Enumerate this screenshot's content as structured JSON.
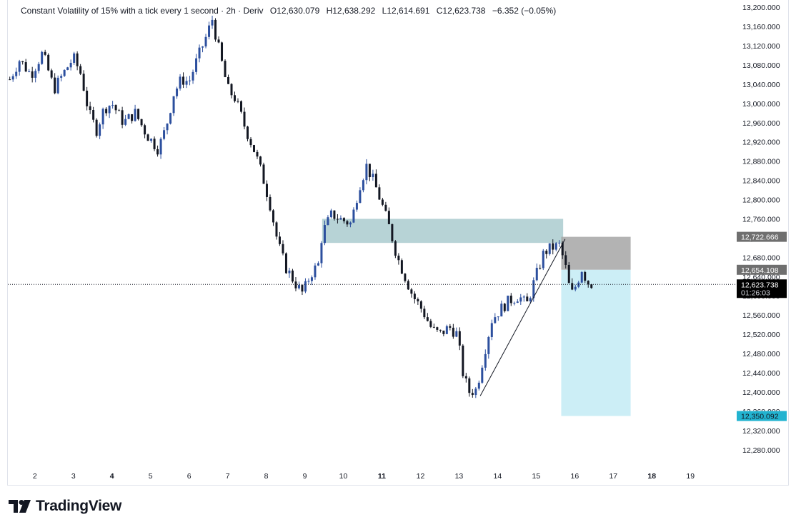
{
  "legend": {
    "symbol": "Constant Volatility of 15% with a tick every 1 second · 2h · Deriv",
    "open": "O12,630.079",
    "high": "H12,638.292",
    "low": "L12,614.691",
    "close": "C12,623.738",
    "change": "−6.352 (−0.05%)"
  },
  "brand": {
    "name": "TradingView",
    "icon": "tradingview-logo-icon"
  },
  "colors": {
    "up": "#2c4f9e",
    "down": "#131722",
    "supply_zone": "#9fc4c8",
    "stop_zone": "#a6a6a6",
    "target_zone": "#c6ecf5",
    "target_tag": "#22b3d0"
  },
  "chart_data": {
    "type": "candlestick",
    "y_axis_ticks": [
      13200,
      13160,
      13120,
      13080,
      13040,
      13000,
      12960,
      12920,
      12880,
      12840,
      12800,
      12760,
      12720,
      12680,
      12640,
      12600,
      12560,
      12520,
      12480,
      12440,
      12400,
      12360,
      12320,
      12280
    ],
    "x_axis_ticks": [
      {
        "label": "2",
        "day": 2,
        "bold": false
      },
      {
        "label": "3",
        "day": 3,
        "bold": false
      },
      {
        "label": "4",
        "day": 4,
        "bold": true
      },
      {
        "label": "5",
        "day": 5,
        "bold": false
      },
      {
        "label": "6",
        "day": 6,
        "bold": false
      },
      {
        "label": "7",
        "day": 7,
        "bold": false
      },
      {
        "label": "8",
        "day": 8,
        "bold": false
      },
      {
        "label": "9",
        "day": 9,
        "bold": false
      },
      {
        "label": "10",
        "day": 10,
        "bold": false
      },
      {
        "label": "11",
        "day": 11,
        "bold": true
      },
      {
        "label": "12",
        "day": 12,
        "bold": false
      },
      {
        "label": "13",
        "day": 13,
        "bold": false
      },
      {
        "label": "14",
        "day": 14,
        "bold": false
      },
      {
        "label": "15",
        "day": 15,
        "bold": false
      },
      {
        "label": "16",
        "day": 16,
        "bold": false
      },
      {
        "label": "17",
        "day": 17,
        "bold": false
      },
      {
        "label": "18",
        "day": 18,
        "bold": true
      },
      {
        "label": "19",
        "day": 19,
        "bold": false
      }
    ],
    "x_range_days": [
      1.3,
      20.2
    ],
    "y_range": [
      12250,
      13215
    ],
    "price_path": [
      [
        1.35,
        13050
      ],
      [
        1.6,
        13090
      ],
      [
        1.9,
        13060
      ],
      [
        2.2,
        13105
      ],
      [
        2.5,
        13030
      ],
      [
        2.8,
        13070
      ],
      [
        3.0,
        13095
      ],
      [
        3.2,
        13060
      ],
      [
        3.4,
        12980
      ],
      [
        3.6,
        12945
      ],
      [
        3.8,
        12990
      ],
      [
        4.0,
        13000
      ],
      [
        4.3,
        12960
      ],
      [
        4.6,
        12980
      ],
      [
        4.9,
        12935
      ],
      [
        5.2,
        12905
      ],
      [
        5.4,
        12950
      ],
      [
        5.6,
        13020
      ],
      [
        5.8,
        13050
      ],
      [
        6.0,
        13045
      ],
      [
        6.2,
        13090
      ],
      [
        6.45,
        13140
      ],
      [
        6.6,
        13175
      ],
      [
        6.75,
        13120
      ],
      [
        7.0,
        13030
      ],
      [
        7.2,
        13010
      ],
      [
        7.45,
        12950
      ],
      [
        7.7,
        12900
      ],
      [
        7.9,
        12850
      ],
      [
        8.1,
        12790
      ],
      [
        8.3,
        12710
      ],
      [
        8.5,
        12660
      ],
      [
        8.8,
        12620
      ],
      [
        8.95,
        12605
      ],
      [
        9.15,
        12645
      ],
      [
        9.35,
        12665
      ],
      [
        9.45,
        12730
      ],
      [
        9.7,
        12770
      ],
      [
        9.9,
        12760
      ],
      [
        10.2,
        12750
      ],
      [
        10.4,
        12825
      ],
      [
        10.6,
        12870
      ],
      [
        10.8,
        12835
      ],
      [
        11.0,
        12790
      ],
      [
        11.2,
        12740
      ],
      [
        11.4,
        12680
      ],
      [
        11.6,
        12640
      ],
      [
        11.8,
        12600
      ],
      [
        12.05,
        12570
      ],
      [
        12.3,
        12530
      ],
      [
        12.5,
        12520
      ],
      [
        12.75,
        12535
      ],
      [
        12.95,
        12520
      ],
      [
        13.1,
        12440
      ],
      [
        13.25,
        12400
      ],
      [
        13.45,
        12405
      ],
      [
        13.65,
        12480
      ],
      [
        13.85,
        12550
      ],
      [
        14.05,
        12570
      ],
      [
        14.3,
        12590
      ],
      [
        14.55,
        12600
      ],
      [
        14.75,
        12580
      ],
      [
        14.95,
        12630
      ],
      [
        15.2,
        12690
      ],
      [
        15.4,
        12700
      ],
      [
        15.6,
        12705
      ],
      [
        15.75,
        12665
      ],
      [
        15.9,
        12600
      ],
      [
        16.05,
        12625
      ],
      [
        16.2,
        12660
      ],
      [
        16.3,
        12630
      ],
      [
        16.45,
        12624
      ]
    ],
    "supply_zone": {
      "from_day": 9.45,
      "to_day": 15.7,
      "low": 12710,
      "high": 12760
    },
    "short_position": {
      "from_day": 15.65,
      "to_day": 17.45,
      "entry": 12654.108,
      "stop": 12722.666,
      "target": 12350.092
    },
    "trendline": {
      "from": [
        13.55,
        12392
      ],
      "to": [
        15.75,
        12718
      ]
    },
    "last_price": 12623.738,
    "countdown": "01:26:03",
    "price_tags": {
      "stop": "12,722.666",
      "entry": "12,654.108",
      "last": "12,623.738",
      "target": "12,350.092"
    },
    "grid": false
  }
}
